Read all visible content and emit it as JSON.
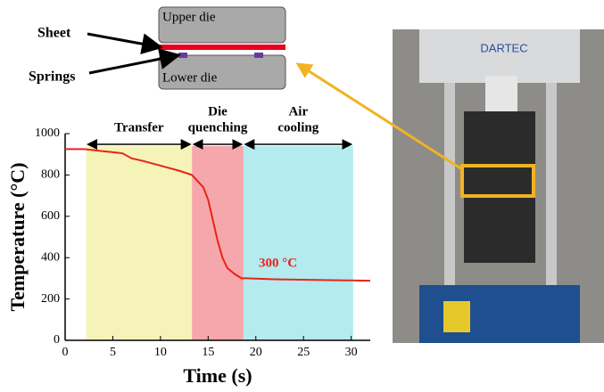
{
  "chart_data": {
    "type": "line",
    "xlabel": "Time (s)",
    "ylabel": "Temperature (°C)",
    "x": [
      0,
      2,
      4,
      6,
      7,
      8,
      10,
      12,
      13.3,
      14.5,
      15,
      15.5,
      16,
      16.5,
      17,
      17.8,
      18.5,
      19,
      22,
      25,
      28,
      30,
      32
    ],
    "series": [
      {
        "color": "#e8231c",
        "values": [
          925,
          925,
          915,
          905,
          880,
          870,
          845,
          820,
          800,
          740,
          680,
          580,
          480,
          400,
          350,
          320,
          300,
          300,
          295,
          293,
          291,
          290,
          288
        ]
      }
    ],
    "xlim": [
      0,
      32
    ],
    "xticks": [
      0,
      5,
      10,
      15,
      20,
      25,
      30
    ],
    "ylim": [
      0,
      1000
    ],
    "yticks": [
      0,
      200,
      400,
      600,
      800,
      1000
    ],
    "regions": [
      {
        "label": [
          "Transfer"
        ],
        "start": 2.2,
        "end": 13.3,
        "color": "#f6f3b8"
      },
      {
        "label": [
          "Die",
          "quenching"
        ],
        "start": 13.3,
        "end": 18.7,
        "color": "#f6a7ab"
      },
      {
        "label": [
          "Air",
          "cooling"
        ],
        "start": 18.7,
        "end": 30.2,
        "color": "#b3ebee"
      }
    ],
    "annotation": "300 °C"
  },
  "schematic": {
    "upper_die": "Upper die",
    "lower_die": "Lower die",
    "sheet": "Sheet",
    "springs": "Springs"
  },
  "photo": {
    "brand": "DARTEC"
  }
}
